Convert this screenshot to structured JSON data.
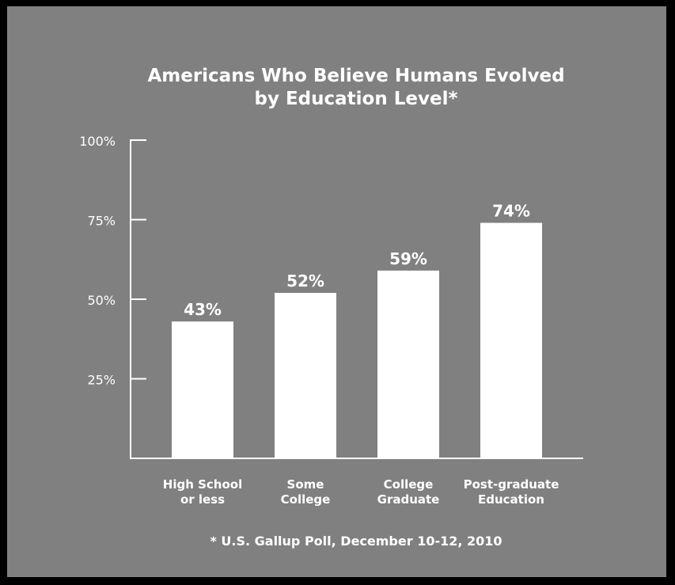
{
  "chart_data": {
    "type": "bar",
    "title_lines": [
      "Americans Who Believe Humans Evolved",
      "by Education Level*"
    ],
    "categories": [
      [
        "High School",
        "or less"
      ],
      [
        "Some",
        "College"
      ],
      [
        "College",
        "Graduate"
      ],
      [
        "Post-graduate",
        "Education"
      ]
    ],
    "values": [
      43,
      52,
      59,
      74
    ],
    "data_labels": [
      "43%",
      "52%",
      "59%",
      "74%"
    ],
    "yticks": [
      25,
      50,
      75,
      100
    ],
    "ytick_labels": [
      "25%",
      "50%",
      "75%",
      "100%"
    ],
    "ylim": [
      0,
      100
    ],
    "grid": false,
    "bar_color": "#ffffff",
    "background_color": "#808080",
    "text_color": "#ffffff"
  },
  "footnote": "* U.S. Gallup Poll, December 10-12, 2010"
}
